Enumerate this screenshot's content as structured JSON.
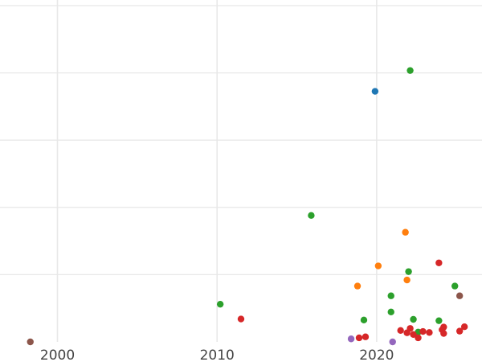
{
  "chart_data": {
    "type": "scatter",
    "title": "",
    "xlabel": "",
    "ylabel": "",
    "xlim": [
      1996.4,
      2026.6
    ],
    "ylim": [
      0,
      100
    ],
    "x_ticks": [
      2000,
      2010,
      2020
    ],
    "x_tick_labels": [
      "2000",
      "2010",
      "2020"
    ],
    "y_gridlines": [
      20,
      40,
      60,
      80,
      100
    ],
    "grid": true,
    "legend": "none",
    "colors": {
      "blue": "#1f77b4",
      "orange": "#ff7f0e",
      "green": "#2ca02c",
      "red": "#d62728",
      "purple": "#9467bd",
      "brown": "#8c564b",
      "gridline": "#e8e8e8",
      "text": "#444444"
    },
    "series": [
      {
        "color": "#1f77b4",
        "points": [
          [
            2019.9,
            74.5
          ]
        ]
      },
      {
        "color": "#ff7f0e",
        "points": [
          [
            2018.8,
            16.6
          ],
          [
            2020.1,
            22.6
          ],
          [
            2021.8,
            32.6
          ],
          [
            2021.9,
            18.4
          ]
        ]
      },
      {
        "color": "#2ca02c",
        "points": [
          [
            2010.2,
            11.2
          ],
          [
            2015.9,
            37.6
          ],
          [
            2019.2,
            6.5
          ],
          [
            2020.9,
            8.9
          ],
          [
            2020.9,
            13.7
          ],
          [
            2022.0,
            20.9
          ],
          [
            2022.1,
            80.7
          ],
          [
            2022.3,
            6.7
          ],
          [
            2022.6,
            2.9
          ],
          [
            2023.9,
            6.3
          ],
          [
            2024.9,
            16.6
          ]
        ]
      },
      {
        "color": "#d62728",
        "points": [
          [
            2011.5,
            6.8
          ],
          [
            2018.9,
            1.2
          ],
          [
            2019.3,
            1.5
          ],
          [
            2021.5,
            3.4
          ],
          [
            2021.9,
            2.7
          ],
          [
            2022.1,
            4.0
          ],
          [
            2022.3,
            2.2
          ],
          [
            2022.6,
            1.2
          ],
          [
            2022.9,
            3.1
          ],
          [
            2023.3,
            2.8
          ],
          [
            2023.9,
            23.5
          ],
          [
            2024.1,
            3.6
          ],
          [
            2024.2,
            4.4
          ],
          [
            2024.2,
            2.5
          ],
          [
            2025.2,
            3.2
          ],
          [
            2025.5,
            4.5
          ]
        ]
      },
      {
        "color": "#9467bd",
        "points": [
          [
            2018.4,
            0.9
          ],
          [
            2021.0,
            0.0
          ]
        ]
      },
      {
        "color": "#8c564b",
        "points": [
          [
            1998.3,
            0.0
          ],
          [
            2025.2,
            13.7
          ]
        ]
      }
    ]
  }
}
